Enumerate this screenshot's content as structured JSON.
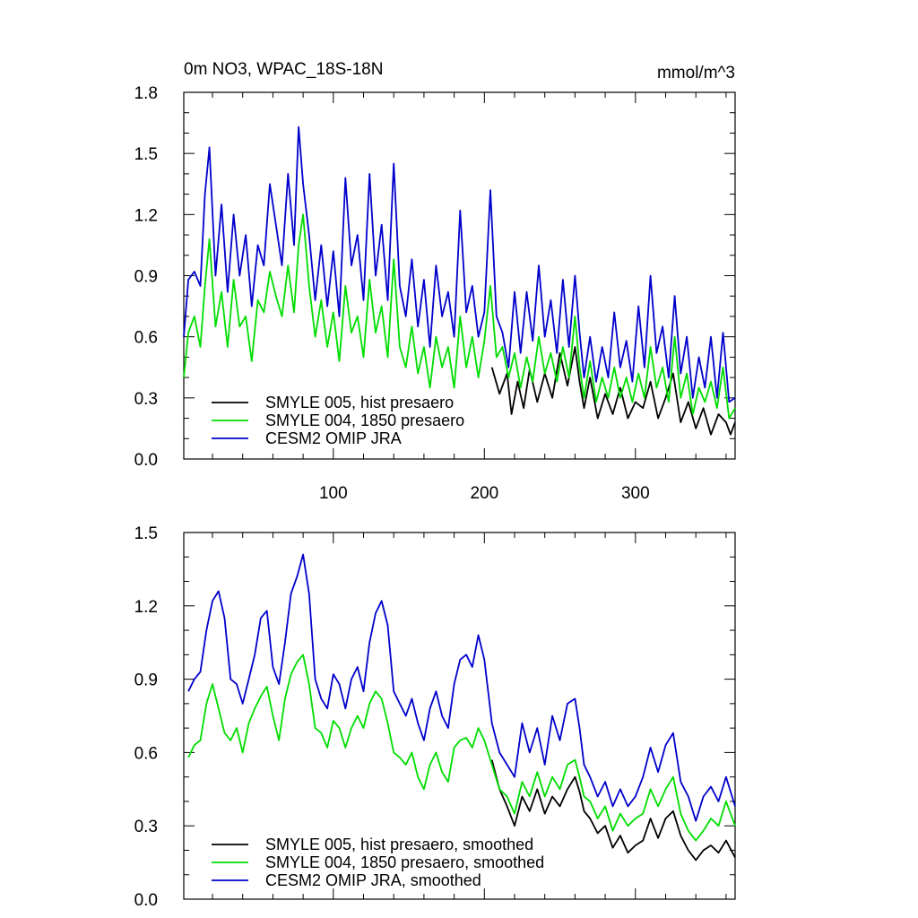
{
  "chart_data": [
    {
      "type": "line",
      "title": "0m NO3, WPAC_18S-18N",
      "units_label": "mmol/m^3",
      "xlim": [
        1,
        366
      ],
      "ylim": [
        0,
        1.8
      ],
      "x_ticks": [
        100,
        200,
        300
      ],
      "x_tick_labels": [
        "100",
        "200",
        "300"
      ],
      "y_ticks": [
        0,
        0.3,
        0.6,
        0.9,
        1.2,
        1.5,
        1.8
      ],
      "y_tick_labels": [
        "0.0",
        "0.3",
        "0.6",
        "0.9",
        "1.2",
        "1.5",
        "1.8"
      ],
      "grid": false,
      "legend_position": "bottom-left",
      "series": [
        {
          "name": "SMYLE 005, hist presaero",
          "color": "#000000",
          "x": [
            205,
            210,
            215,
            218,
            222,
            226,
            230,
            235,
            240,
            245,
            250,
            255,
            260,
            263,
            266,
            270,
            275,
            280,
            285,
            290,
            295,
            300,
            305,
            310,
            315,
            320,
            325,
            330,
            335,
            340,
            345,
            350,
            355,
            360,
            363,
            366
          ],
          "values": [
            0.45,
            0.32,
            0.42,
            0.22,
            0.38,
            0.25,
            0.44,
            0.28,
            0.42,
            0.3,
            0.52,
            0.36,
            0.55,
            0.38,
            0.25,
            0.4,
            0.2,
            0.32,
            0.22,
            0.35,
            0.2,
            0.28,
            0.25,
            0.38,
            0.2,
            0.3,
            0.42,
            0.18,
            0.28,
            0.15,
            0.25,
            0.12,
            0.22,
            0.18,
            0.12,
            0.18
          ]
        },
        {
          "name": "SMYLE 004, 1850 presaero",
          "color": "#00dd00",
          "x": [
            1,
            4,
            8,
            12,
            15,
            18,
            22,
            26,
            30,
            34,
            38,
            42,
            46,
            50,
            54,
            58,
            62,
            66,
            70,
            74,
            77,
            80,
            84,
            88,
            92,
            96,
            100,
            104,
            108,
            112,
            116,
            120,
            124,
            128,
            132,
            136,
            140,
            144,
            148,
            152,
            156,
            160,
            164,
            168,
            172,
            176,
            180,
            184,
            188,
            192,
            196,
            200,
            204,
            208,
            212,
            216,
            220,
            224,
            228,
            232,
            236,
            240,
            244,
            248,
            252,
            256,
            260,
            263,
            266,
            270,
            274,
            278,
            282,
            286,
            290,
            294,
            298,
            302,
            306,
            310,
            314,
            318,
            322,
            326,
            330,
            334,
            338,
            342,
            346,
            350,
            354,
            358,
            362,
            366
          ],
          "values": [
            0.4,
            0.62,
            0.7,
            0.55,
            0.85,
            1.08,
            0.65,
            0.82,
            0.55,
            0.88,
            0.65,
            0.7,
            0.48,
            0.78,
            0.72,
            0.92,
            0.8,
            0.7,
            0.95,
            0.72,
            1.05,
            1.2,
            0.85,
            0.6,
            0.78,
            0.55,
            0.72,
            0.48,
            0.85,
            0.62,
            0.7,
            0.5,
            0.88,
            0.62,
            0.75,
            0.5,
            0.98,
            0.55,
            0.45,
            0.65,
            0.42,
            0.55,
            0.35,
            0.6,
            0.45,
            0.55,
            0.35,
            0.7,
            0.45,
            0.6,
            0.4,
            0.58,
            0.85,
            0.5,
            0.55,
            0.4,
            0.52,
            0.35,
            0.5,
            0.38,
            0.6,
            0.42,
            0.52,
            0.38,
            0.55,
            0.4,
            0.7,
            0.45,
            0.3,
            0.48,
            0.28,
            0.4,
            0.3,
            0.45,
            0.3,
            0.4,
            0.28,
            0.42,
            0.3,
            0.55,
            0.35,
            0.45,
            0.28,
            0.6,
            0.3,
            0.42,
            0.22,
            0.35,
            0.28,
            0.38,
            0.25,
            0.45,
            0.2,
            0.25
          ]
        },
        {
          "name": "CESM2 OMIP JRA",
          "color": "#0000cc",
          "x": [
            1,
            4,
            8,
            12,
            15,
            18,
            22,
            26,
            30,
            34,
            38,
            42,
            46,
            50,
            54,
            58,
            62,
            66,
            70,
            74,
            77,
            80,
            84,
            88,
            92,
            96,
            100,
            104,
            108,
            112,
            116,
            120,
            124,
            128,
            132,
            136,
            140,
            144,
            148,
            152,
            156,
            160,
            164,
            168,
            172,
            176,
            180,
            184,
            188,
            192,
            196,
            200,
            204,
            208,
            212,
            216,
            220,
            224,
            228,
            232,
            236,
            240,
            244,
            248,
            252,
            256,
            260,
            263,
            266,
            270,
            274,
            278,
            282,
            286,
            290,
            294,
            298,
            302,
            306,
            310,
            314,
            318,
            322,
            326,
            330,
            334,
            338,
            342,
            346,
            350,
            354,
            358,
            362,
            366
          ],
          "values": [
            0.6,
            0.88,
            0.92,
            0.85,
            1.3,
            1.53,
            0.9,
            1.25,
            0.82,
            1.2,
            0.9,
            1.1,
            0.75,
            1.05,
            0.95,
            1.35,
            1.15,
            0.95,
            1.4,
            1.05,
            1.63,
            1.35,
            1.1,
            0.78,
            1.05,
            0.75,
            1.02,
            0.7,
            1.38,
            0.95,
            1.1,
            0.78,
            1.4,
            0.9,
            1.15,
            0.78,
            1.45,
            0.85,
            0.7,
            0.98,
            0.65,
            0.88,
            0.55,
            0.95,
            0.7,
            0.82,
            0.6,
            1.22,
            0.72,
            0.85,
            0.6,
            0.72,
            1.32,
            0.7,
            0.62,
            0.45,
            0.82,
            0.52,
            0.82,
            0.58,
            0.95,
            0.6,
            0.78,
            0.52,
            0.88,
            0.55,
            0.9,
            0.62,
            0.4,
            0.6,
            0.38,
            0.55,
            0.4,
            0.72,
            0.45,
            0.58,
            0.38,
            0.75,
            0.45,
            0.9,
            0.52,
            0.65,
            0.4,
            0.8,
            0.42,
            0.6,
            0.3,
            0.5,
            0.35,
            0.6,
            0.3,
            0.62,
            0.28,
            0.3
          ]
        }
      ]
    },
    {
      "type": "line",
      "xlim": [
        1,
        366
      ],
      "ylim": [
        0,
        1.5
      ],
      "y_ticks": [
        0,
        0.3,
        0.6,
        0.9,
        1.2,
        1.5
      ],
      "y_tick_labels": [
        "0.0",
        "0.3",
        "0.6",
        "0.9",
        "1.2",
        "1.5"
      ],
      "grid": false,
      "legend_position": "bottom-left",
      "series": [
        {
          "name": "SMYLE 005, hist presaero, smoothed",
          "color": "#000000",
          "x": [
            205,
            210,
            215,
            220,
            225,
            230,
            235,
            240,
            245,
            250,
            255,
            260,
            263,
            266,
            270,
            275,
            280,
            285,
            290,
            295,
            300,
            305,
            310,
            315,
            320,
            325,
            330,
            335,
            340,
            345,
            350,
            355,
            360,
            366
          ],
          "values": [
            0.57,
            0.45,
            0.38,
            0.3,
            0.42,
            0.36,
            0.45,
            0.35,
            0.42,
            0.38,
            0.45,
            0.5,
            0.44,
            0.36,
            0.33,
            0.27,
            0.3,
            0.21,
            0.26,
            0.19,
            0.22,
            0.24,
            0.33,
            0.25,
            0.33,
            0.36,
            0.26,
            0.2,
            0.16,
            0.2,
            0.22,
            0.19,
            0.24,
            0.17
          ]
        },
        {
          "name": "SMYLE 004, 1850 presaero, smoothed",
          "color": "#00dd00",
          "x": [
            4,
            8,
            12,
            16,
            20,
            24,
            28,
            32,
            36,
            40,
            44,
            48,
            52,
            56,
            60,
            64,
            68,
            72,
            76,
            80,
            84,
            88,
            92,
            96,
            100,
            104,
            108,
            112,
            116,
            120,
            124,
            128,
            132,
            136,
            140,
            144,
            148,
            152,
            156,
            160,
            164,
            168,
            172,
            176,
            180,
            184,
            188,
            192,
            196,
            200,
            205,
            210,
            215,
            220,
            225,
            230,
            235,
            240,
            245,
            250,
            255,
            260,
            263,
            266,
            270,
            275,
            280,
            285,
            290,
            295,
            300,
            305,
            310,
            315,
            320,
            325,
            330,
            335,
            340,
            345,
            350,
            355,
            360,
            366
          ],
          "values": [
            0.58,
            0.63,
            0.65,
            0.8,
            0.88,
            0.78,
            0.68,
            0.65,
            0.7,
            0.6,
            0.72,
            0.78,
            0.83,
            0.87,
            0.75,
            0.65,
            0.82,
            0.92,
            0.97,
            1.0,
            0.88,
            0.7,
            0.68,
            0.62,
            0.73,
            0.7,
            0.62,
            0.7,
            0.75,
            0.7,
            0.8,
            0.85,
            0.82,
            0.72,
            0.6,
            0.58,
            0.55,
            0.6,
            0.5,
            0.45,
            0.55,
            0.6,
            0.52,
            0.48,
            0.62,
            0.65,
            0.66,
            0.62,
            0.7,
            0.65,
            0.55,
            0.45,
            0.42,
            0.35,
            0.48,
            0.42,
            0.52,
            0.42,
            0.5,
            0.45,
            0.55,
            0.57,
            0.5,
            0.42,
            0.4,
            0.33,
            0.38,
            0.28,
            0.35,
            0.3,
            0.33,
            0.35,
            0.45,
            0.38,
            0.45,
            0.5,
            0.35,
            0.28,
            0.24,
            0.28,
            0.33,
            0.3,
            0.4,
            0.3
          ]
        },
        {
          "name": "CESM2 OMIP JRA, smoothed",
          "color": "#0000cc",
          "x": [
            4,
            8,
            12,
            16,
            20,
            24,
            28,
            32,
            36,
            40,
            44,
            48,
            52,
            56,
            60,
            64,
            68,
            72,
            76,
            80,
            84,
            88,
            92,
            96,
            100,
            104,
            108,
            112,
            116,
            120,
            124,
            128,
            132,
            136,
            140,
            144,
            148,
            152,
            156,
            160,
            164,
            168,
            172,
            176,
            180,
            184,
            188,
            192,
            196,
            200,
            205,
            210,
            215,
            220,
            225,
            230,
            235,
            240,
            245,
            250,
            255,
            260,
            263,
            266,
            270,
            275,
            280,
            285,
            290,
            295,
            300,
            305,
            310,
            315,
            320,
            325,
            330,
            335,
            340,
            345,
            350,
            355,
            360,
            366
          ],
          "values": [
            0.85,
            0.9,
            0.93,
            1.1,
            1.22,
            1.26,
            1.15,
            0.9,
            0.88,
            0.8,
            0.9,
            1.0,
            1.15,
            1.18,
            0.95,
            0.88,
            1.05,
            1.25,
            1.32,
            1.41,
            1.25,
            0.9,
            0.82,
            0.78,
            0.92,
            0.88,
            0.78,
            0.9,
            0.95,
            0.85,
            1.05,
            1.17,
            1.22,
            1.12,
            0.85,
            0.8,
            0.75,
            0.82,
            0.72,
            0.65,
            0.78,
            0.85,
            0.75,
            0.7,
            0.88,
            0.98,
            1.0,
            0.95,
            1.08,
            0.98,
            0.72,
            0.6,
            0.55,
            0.5,
            0.72,
            0.6,
            0.7,
            0.55,
            0.75,
            0.65,
            0.8,
            0.82,
            0.7,
            0.55,
            0.5,
            0.42,
            0.48,
            0.38,
            0.45,
            0.38,
            0.42,
            0.5,
            0.62,
            0.52,
            0.63,
            0.68,
            0.48,
            0.42,
            0.32,
            0.42,
            0.46,
            0.4,
            0.5,
            0.38
          ]
        }
      ]
    }
  ]
}
